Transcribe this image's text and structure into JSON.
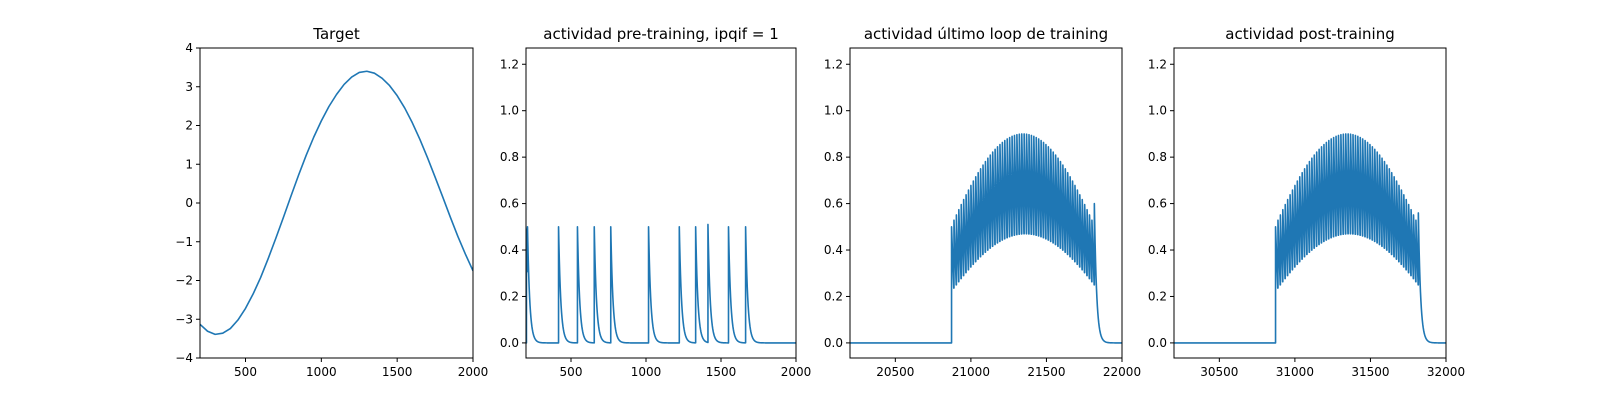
{
  "chart_data": [
    {
      "type": "line",
      "title": "Target",
      "xlabel": "",
      "ylabel": "",
      "xlim": [
        200,
        2000
      ],
      "ylim": [
        -4,
        4
      ],
      "xticks": [
        500,
        1000,
        1500,
        2000
      ],
      "xtick_labels": [
        "500",
        "1000",
        "1500",
        "2000"
      ],
      "yticks": [
        -4,
        -3,
        -2,
        -1,
        0,
        1,
        2,
        3,
        4
      ],
      "ytick_labels": [
        "−4",
        "−3",
        "−2",
        "−1",
        "0",
        "1",
        "2",
        "3",
        "4"
      ],
      "color": "#1f77b4",
      "series": [
        {
          "x": [
            200,
            250,
            300,
            350,
            400,
            450,
            500,
            550,
            600,
            650,
            700,
            750,
            800,
            850,
            900,
            950,
            1000,
            1050,
            1100,
            1150,
            1200,
            1250,
            1300,
            1350,
            1400,
            1450,
            1500,
            1550,
            1600,
            1650,
            1700,
            1750,
            1800,
            1850,
            1900,
            1950,
            2000
          ],
          "y": [
            -3.13,
            -3.31,
            -3.39,
            -3.36,
            -3.24,
            -3.02,
            -2.72,
            -2.35,
            -1.92,
            -1.43,
            -0.91,
            -0.37,
            0.18,
            0.72,
            1.23,
            1.7,
            2.12,
            2.49,
            2.8,
            3.06,
            3.25,
            3.37,
            3.4,
            3.35,
            3.22,
            3.03,
            2.77,
            2.45,
            2.07,
            1.64,
            1.17,
            0.67,
            0.16,
            -0.36,
            -0.86,
            -1.32,
            -1.75
          ]
        }
      ]
    },
    {
      "type": "line",
      "title": "actividad pre-training, ipqif = 1",
      "xlabel": "",
      "ylabel": "",
      "xlim": [
        200,
        2000
      ],
      "ylim": [
        -0.065,
        1.27
      ],
      "xticks": [
        500,
        1000,
        1500,
        2000
      ],
      "xtick_labels": [
        "500",
        "1000",
        "1500",
        "2000"
      ],
      "yticks": [
        0,
        0.2,
        0.4,
        0.6,
        0.8,
        1.0,
        1.2
      ],
      "ytick_labels": [
        "0.0",
        "0.2",
        "0.4",
        "0.6",
        "0.8",
        "1.0",
        "1.2"
      ],
      "color": "#1f77b4",
      "series": [
        {
          "spike_times": [
            203,
            210,
            417,
            543,
            655,
            765,
            1017,
            1222,
            1331,
            1413,
            1550,
            1664
          ],
          "spike_peaks": [
            0.49,
            0.5,
            0.5,
            0.5,
            0.5,
            0.5,
            0.5,
            0.5,
            0.5,
            0.51,
            0.5,
            0.5
          ],
          "decay": 15
        }
      ]
    },
    {
      "type": "line",
      "title": "actividad último loop de training",
      "xlabel": "",
      "ylabel": "",
      "xlim": [
        20200,
        22000
      ],
      "ylim": [
        -0.065,
        1.27
      ],
      "xticks": [
        20500,
        21000,
        21500,
        22000
      ],
      "xtick_labels": [
        "20500",
        "21000",
        "21500",
        "22000"
      ],
      "yticks": [
        0,
        0.2,
        0.4,
        0.6,
        0.8,
        1.0,
        1.2
      ],
      "ytick_labels": [
        "0.0",
        "0.2",
        "0.4",
        "0.6",
        "0.8",
        "1.0",
        "1.2"
      ],
      "color": "#1f77b4",
      "series": [
        {
          "burst_start": 20872,
          "burst_end": 21817,
          "n_spikes": 60,
          "first_peak": 0.5,
          "max_peak": 0.9,
          "min_trough": 0.1,
          "max_trough": 0.47,
          "last_peak": 0.6,
          "decay": 15
        }
      ]
    },
    {
      "type": "line",
      "title": "actividad post-training",
      "xlabel": "",
      "ylabel": "",
      "xlim": [
        30200,
        32000
      ],
      "ylim": [
        -0.065,
        1.27
      ],
      "xticks": [
        30500,
        31000,
        31500,
        32000
      ],
      "xtick_labels": [
        "30500",
        "31000",
        "31500",
        "32000"
      ],
      "yticks": [
        0,
        0.2,
        0.4,
        0.6,
        0.8,
        1.0,
        1.2
      ],
      "ytick_labels": [
        "0.0",
        "0.2",
        "0.4",
        "0.6",
        "0.8",
        "1.0",
        "1.2"
      ],
      "color": "#1f77b4",
      "series": [
        {
          "burst_start": 30872,
          "burst_end": 31817,
          "n_spikes": 60,
          "first_peak": 0.5,
          "max_peak": 0.9,
          "min_trough": 0.1,
          "max_trough": 0.47,
          "last_peak": 0.56,
          "decay": 15
        }
      ]
    }
  ]
}
